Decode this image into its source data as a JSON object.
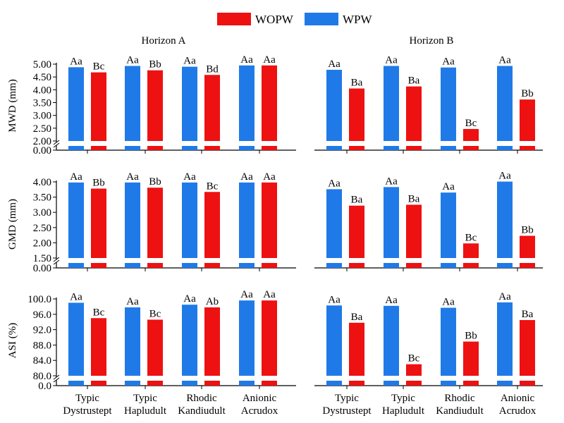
{
  "legend": {
    "items": [
      {
        "label": "WOPW",
        "color": "#ee1111"
      },
      {
        "label": "WPW",
        "color": "#1f7ae8"
      }
    ]
  },
  "colors": {
    "wopw": "#ee1111",
    "wpw": "#1f7ae8"
  },
  "chart_data": [
    {
      "type": "bar",
      "title": "Horizon A",
      "ylabel": "MWD (mm)",
      "categories": [
        "Typic Dystrustept",
        "Typic Hapludult",
        "Rhodic Kandiudult",
        "Anionic Acrudox"
      ],
      "ylim": [
        0,
        5.0
      ],
      "axis_break": [
        0,
        2.0
      ],
      "yticks": [
        "0.00",
        "2.00",
        "2.50",
        "3.00",
        "3.50",
        "4.00",
        "4.50",
        "5.00"
      ],
      "series": [
        {
          "name": "WPW",
          "values": [
            4.88,
            4.93,
            4.9,
            4.95
          ],
          "labels": [
            "Aa",
            "Aa",
            "Aa",
            "Aa"
          ]
        },
        {
          "name": "WOPW",
          "values": [
            4.68,
            4.76,
            4.58,
            4.95
          ],
          "labels": [
            "Bc",
            "Bb",
            "Bd",
            "Aa"
          ]
        }
      ]
    },
    {
      "type": "bar",
      "title": "Horizon B",
      "ylabel": "",
      "categories": [
        "Typic Dystrustept",
        "Typic Hapludult",
        "Rhodic Kandiudult",
        "Anionic Acrudox"
      ],
      "ylim": [
        0,
        5.0
      ],
      "axis_break": [
        0,
        2.0
      ],
      "series": [
        {
          "name": "WPW",
          "values": [
            4.78,
            4.93,
            4.87,
            4.93
          ],
          "labels": [
            "Aa",
            "Aa",
            "Aa",
            "Aa"
          ]
        },
        {
          "name": "WOPW",
          "values": [
            4.05,
            4.13,
            2.47,
            3.62
          ],
          "labels": [
            "Ba",
            "Ba",
            "Bc",
            "Bb"
          ]
        }
      ]
    },
    {
      "type": "bar",
      "title": "",
      "ylabel": "GMD (mm)",
      "categories": [
        "Typic Dystrustept",
        "Typic Hapludult",
        "Rhodic Kandiudult",
        "Anionic Acrudox"
      ],
      "ylim": [
        0,
        4.0
      ],
      "axis_break": [
        0,
        1.5
      ],
      "yticks": [
        "0.00",
        "1.50",
        "2.00",
        "2.50",
        "3.00",
        "3.50",
        "4.00"
      ],
      "series": [
        {
          "name": "WPW",
          "values": [
            3.98,
            3.98,
            3.98,
            3.98
          ],
          "labels": [
            "Aa",
            "Aa",
            "Aa",
            "Aa"
          ]
        },
        {
          "name": "WOPW",
          "values": [
            3.78,
            3.81,
            3.67,
            3.98
          ],
          "labels": [
            "Bb",
            "Bb",
            "Bc",
            "Aa"
          ]
        }
      ]
    },
    {
      "type": "bar",
      "title": "",
      "ylabel": "",
      "categories": [
        "Typic Dystrustept",
        "Typic Hapludult",
        "Rhodic Kandiudult",
        "Anionic Acrudox"
      ],
      "ylim": [
        0,
        4.0
      ],
      "axis_break": [
        0,
        1.5
      ],
      "series": [
        {
          "name": "WPW",
          "values": [
            3.76,
            3.83,
            3.65,
            4.01
          ],
          "labels": [
            "Aa",
            "Aa",
            "Aa",
            "Aa"
          ]
        },
        {
          "name": "WOPW",
          "values": [
            3.22,
            3.25,
            1.98,
            2.23
          ],
          "labels": [
            "Ba",
            "Ba",
            "Bc",
            "Bb"
          ]
        }
      ]
    },
    {
      "type": "bar",
      "title": "",
      "ylabel": "ASI (%)",
      "categories": [
        "Typic Dystrustept",
        "Typic Hapludult",
        "Rhodic Kandiudult",
        "Anionic Acrudox"
      ],
      "ylim": [
        0,
        100.0
      ],
      "axis_break": [
        0,
        80.0
      ],
      "yticks": [
        "0.0",
        "80.0",
        "84.0",
        "88.0",
        "92.0",
        "96.0",
        "100.0"
      ],
      "series": [
        {
          "name": "WPW",
          "values": [
            99.0,
            97.8,
            98.5,
            99.6
          ],
          "labels": [
            "Aa",
            "Aa",
            "Aa",
            "Aa"
          ]
        },
        {
          "name": "WOPW",
          "values": [
            95.0,
            94.6,
            97.8,
            99.6
          ],
          "labels": [
            "Bc",
            "Bc",
            "Ab",
            "Aa"
          ]
        }
      ]
    },
    {
      "type": "bar",
      "title": "",
      "ylabel": "",
      "categories": [
        "Typic Dystrustept",
        "Typic Hapludult",
        "Rhodic Kandiudult",
        "Anionic Acrudox"
      ],
      "ylim": [
        0,
        100.0
      ],
      "axis_break": [
        0,
        80.0
      ],
      "series": [
        {
          "name": "WPW",
          "values": [
            98.3,
            98.2,
            97.7,
            99.1
          ],
          "labels": [
            "Aa",
            "Aa",
            "Aa",
            "Aa"
          ]
        },
        {
          "name": "WOPW",
          "values": [
            93.8,
            83.0,
            88.9,
            94.5
          ],
          "labels": [
            "Ba",
            "Bc",
            "Bb",
            "Ba"
          ]
        }
      ]
    }
  ],
  "xaxis": {
    "categories": [
      [
        "Typic",
        "Dystrustept"
      ],
      [
        "Typic",
        "Hapludult"
      ],
      [
        "Rhodic",
        "Kandiudult"
      ],
      [
        "Anionic",
        "Acrudox"
      ]
    ]
  }
}
